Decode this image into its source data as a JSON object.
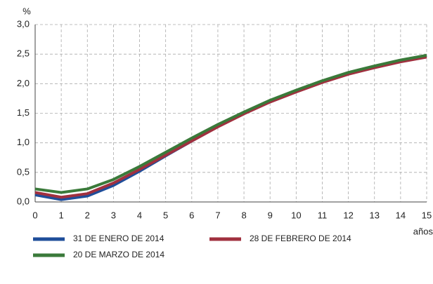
{
  "chart_data": {
    "type": "line",
    "y_label": "%",
    "x_label": "años",
    "x": [
      0,
      1,
      2,
      3,
      4,
      5,
      6,
      7,
      8,
      9,
      10,
      11,
      12,
      13,
      14,
      15
    ],
    "xlim": [
      0,
      15
    ],
    "xticks": [
      0,
      1,
      2,
      3,
      4,
      5,
      6,
      7,
      8,
      9,
      10,
      11,
      12,
      13,
      14,
      15
    ],
    "ylim": [
      0,
      3
    ],
    "yticks": [
      {
        "value": 0,
        "label": "0,0"
      },
      {
        "value": 0.5,
        "label": "0,5"
      },
      {
        "value": 1,
        "label": "1,0"
      },
      {
        "value": 1.5,
        "label": "1,5"
      },
      {
        "value": 2,
        "label": "2,0"
      },
      {
        "value": 2.5,
        "label": "2,5"
      },
      {
        "value": 3,
        "label": "3,0"
      }
    ],
    "grid": true,
    "series": [
      {
        "name": "31 DE ENERO DE 2014",
        "color": "#1f4e9a",
        "values": [
          0.12,
          0.04,
          0.1,
          0.28,
          0.52,
          0.78,
          1.03,
          1.28,
          1.5,
          1.7,
          1.88,
          2.04,
          2.17,
          2.29,
          2.39,
          2.47
        ]
      },
      {
        "name": "28 DE FEBRERO DE 2014",
        "color": "#a0303f",
        "values": [
          0.16,
          0.08,
          0.14,
          0.32,
          0.55,
          0.79,
          1.03,
          1.27,
          1.49,
          1.69,
          1.86,
          2.02,
          2.16,
          2.27,
          2.37,
          2.45
        ]
      },
      {
        "name": "20 DE MARZO DE 2014",
        "color": "#3a7a3a",
        "values": [
          0.22,
          0.16,
          0.22,
          0.38,
          0.6,
          0.84,
          1.08,
          1.31,
          1.52,
          1.72,
          1.89,
          2.05,
          2.19,
          2.3,
          2.4,
          2.48
        ]
      }
    ]
  }
}
